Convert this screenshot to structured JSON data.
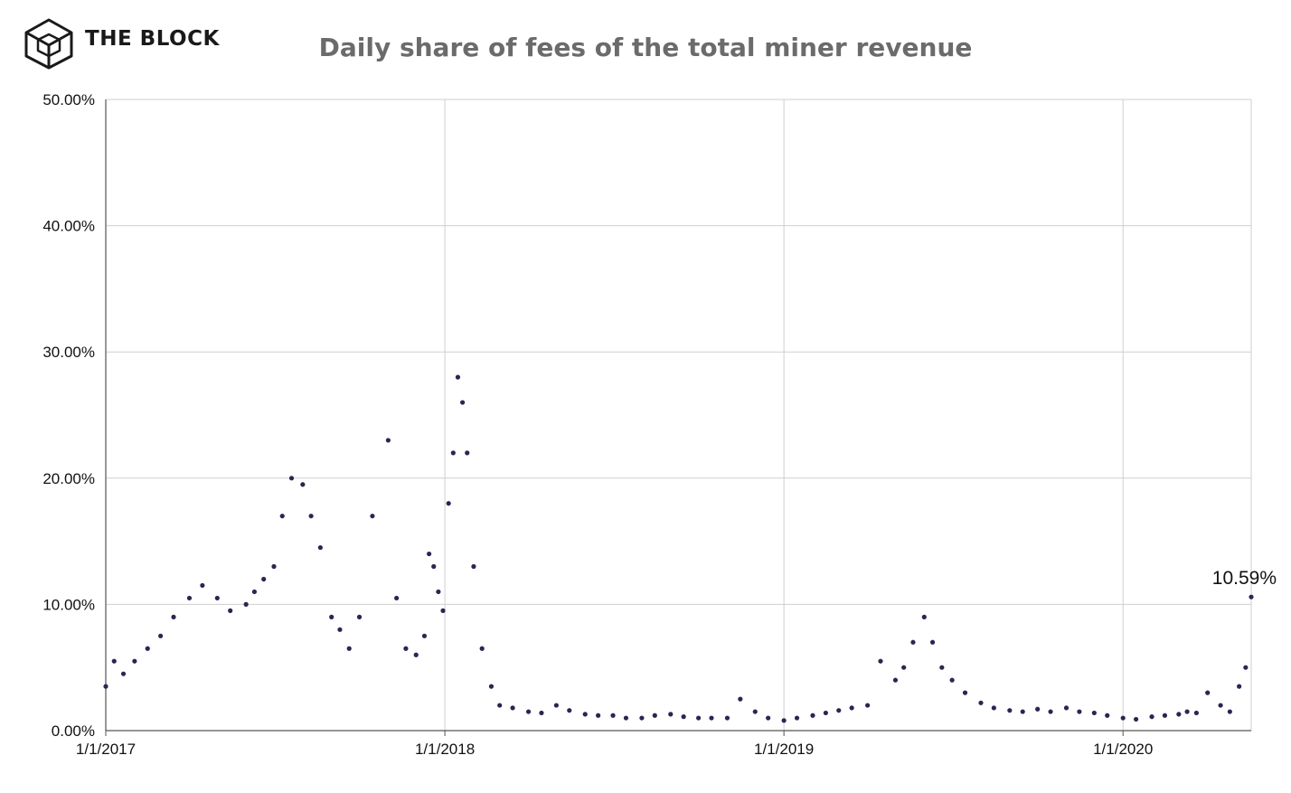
{
  "brand": {
    "name": "THE BLOCK",
    "logo_icon": "cube-logo-icon"
  },
  "chart_data": {
    "type": "scatter",
    "title": "Daily share of fees of the total miner revenue",
    "xlabel": "",
    "ylabel": "",
    "x_ticks": [
      "1/1/2017",
      "1/1/2018",
      "1/1/2019",
      "1/1/2020"
    ],
    "y_ticks": [
      "0.00%",
      "10.00%",
      "20.00%",
      "30.00%",
      "40.00%",
      "50.00%"
    ],
    "xlim": [
      "2017-01-01",
      "2020-05-18"
    ],
    "ylim": [
      0,
      50
    ],
    "grid": true,
    "marker_color": "#2b2552",
    "annotation": {
      "text": "10.59%",
      "x": "2020-05-18",
      "y": 10.59
    },
    "series": [
      {
        "x": [
          "2017-01-01",
          "2017-01-10",
          "2017-01-20",
          "2017-02-01",
          "2017-02-15",
          "2017-03-01",
          "2017-03-15",
          "2017-04-01",
          "2017-04-15",
          "2017-05-01",
          "2017-05-15",
          "2017-06-01",
          "2017-06-10",
          "2017-06-20",
          "2017-07-01",
          "2017-07-10",
          "2017-07-20",
          "2017-08-01",
          "2017-08-10",
          "2017-08-20",
          "2017-09-01",
          "2017-09-10",
          "2017-09-20",
          "2017-10-01",
          "2017-10-15",
          "2017-11-01",
          "2017-11-10",
          "2017-11-20",
          "2017-12-01",
          "2017-12-10",
          "2017-12-15",
          "2017-12-20",
          "2017-12-25",
          "2017-12-30",
          "2018-01-05",
          "2018-01-10",
          "2018-01-15",
          "2018-01-20",
          "2018-01-25",
          "2018-02-01",
          "2018-02-10",
          "2018-02-20",
          "2018-03-01",
          "2018-03-15",
          "2018-04-01",
          "2018-04-15",
          "2018-05-01",
          "2018-05-15",
          "2018-06-01",
          "2018-06-15",
          "2018-07-01",
          "2018-07-15",
          "2018-08-01",
          "2018-08-15",
          "2018-09-01",
          "2018-09-15",
          "2018-10-01",
          "2018-10-15",
          "2018-11-01",
          "2018-11-15",
          "2018-12-01",
          "2018-12-15",
          "2019-01-01",
          "2019-01-15",
          "2019-02-01",
          "2019-02-15",
          "2019-03-01",
          "2019-03-15",
          "2019-04-01",
          "2019-04-15",
          "2019-05-01",
          "2019-05-10",
          "2019-05-20",
          "2019-06-01",
          "2019-06-10",
          "2019-06-20",
          "2019-07-01",
          "2019-07-15",
          "2019-08-01",
          "2019-08-15",
          "2019-09-01",
          "2019-09-15",
          "2019-10-01",
          "2019-10-15",
          "2019-11-01",
          "2019-11-15",
          "2019-12-01",
          "2019-12-15",
          "2020-01-01",
          "2020-01-15",
          "2020-02-01",
          "2020-02-15",
          "2020-03-01",
          "2020-03-10",
          "2020-03-20",
          "2020-04-01",
          "2020-04-15",
          "2020-04-25",
          "2020-05-05",
          "2020-05-12",
          "2020-05-18"
        ],
        "y": [
          3.5,
          5.5,
          4.5,
          5.5,
          6.5,
          7.5,
          9.0,
          10.5,
          11.5,
          10.5,
          9.5,
          10.0,
          11.0,
          12.0,
          13.0,
          17.0,
          20.0,
          19.5,
          17.0,
          14.5,
          9.0,
          8.0,
          6.5,
          9.0,
          17.0,
          23.0,
          10.5,
          6.5,
          6.0,
          7.5,
          14.0,
          13.0,
          11.0,
          9.5,
          18.0,
          22.0,
          28.0,
          26.0,
          22.0,
          13.0,
          6.5,
          3.5,
          2.0,
          1.8,
          1.5,
          1.4,
          2.0,
          1.6,
          1.3,
          1.2,
          1.2,
          1.0,
          1.0,
          1.2,
          1.3,
          1.1,
          1.0,
          1.0,
          1.0,
          2.5,
          1.5,
          1.0,
          0.8,
          1.0,
          1.2,
          1.4,
          1.6,
          1.8,
          2.0,
          5.5,
          4.0,
          5.0,
          7.0,
          9.0,
          7.0,
          5.0,
          4.0,
          3.0,
          2.2,
          1.8,
          1.6,
          1.5,
          1.7,
          1.5,
          1.8,
          1.5,
          1.4,
          1.2,
          1.0,
          0.9,
          1.1,
          1.2,
          1.3,
          1.5,
          1.4,
          3.0,
          2.0,
          1.5,
          3.5,
          5.0,
          10.59
        ]
      }
    ]
  }
}
